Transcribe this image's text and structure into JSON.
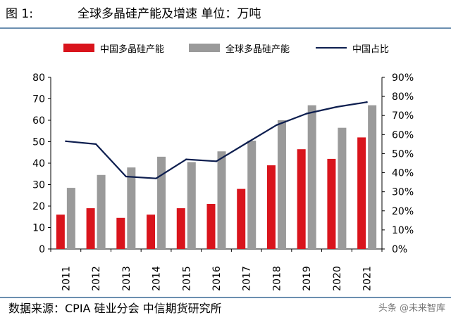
{
  "figure_label": "图 1:",
  "figure_title": "全球多晶硅产能及增速 单位：万吨",
  "source_text": "数据来源：CPIA 硅业分会 中信期货研究所",
  "watermark_text": "头条 @未来智库",
  "colors": {
    "china_bar": "#d9141c",
    "global_bar": "#9a9a9a",
    "share_line": "#0d1e4f",
    "rule": "#6b8fb0"
  },
  "chart_data": {
    "type": "bar",
    "title": "全球多晶硅产能及增速",
    "categories": [
      "2011",
      "2012",
      "2013",
      "2014",
      "2015",
      "2016",
      "2017",
      "2018",
      "2019",
      "2020",
      "2021"
    ],
    "series": [
      {
        "name": "中国多晶硅产能",
        "type": "bar",
        "axis": "left",
        "values": [
          16,
          19,
          14.5,
          16,
          19,
          21,
          28,
          39,
          46.5,
          42,
          52
        ]
      },
      {
        "name": "全球多晶硅产能",
        "type": "bar",
        "axis": "left",
        "values": [
          28.5,
          34.5,
          38,
          43,
          40.5,
          45.5,
          50.5,
          60,
          67,
          56.5,
          67
        ]
      },
      {
        "name": "中国占比",
        "type": "line",
        "axis": "right",
        "values": [
          56.5,
          55,
          38,
          37,
          47,
          46,
          55.5,
          65,
          71,
          74.5,
          77
        ]
      }
    ],
    "y_left": {
      "ylim": [
        0,
        80
      ],
      "ticks": [
        "0",
        "10",
        "20",
        "30",
        "40",
        "50",
        "60",
        "70",
        "80"
      ]
    },
    "y_right": {
      "ylim": [
        0,
        90
      ],
      "ticks": [
        "0%",
        "10%",
        "20%",
        "30%",
        "40%",
        "50%",
        "60%",
        "70%",
        "80%",
        "90%"
      ]
    },
    "grid": false,
    "legend_position": "top"
  }
}
